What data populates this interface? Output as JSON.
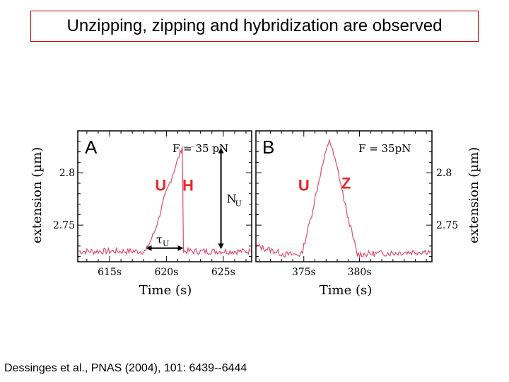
{
  "slide": {
    "title": "Unzipping, zipping and hybridization are observed",
    "citation": "Dessinges et al., PNAS (2004), 101: 6439--6444"
  },
  "colors": {
    "trace": "#e04a6a",
    "letters": "#e8262a",
    "title_border": "#c00000",
    "axis": "#000000"
  },
  "chart_data": [
    {
      "type": "line",
      "panel_label": "A",
      "force_label": "F = 35  pN",
      "xlabel": "Time (s)",
      "ylabel": "extension (µm)",
      "xlim": [
        612.2,
        627.5
      ],
      "ylim": [
        2.715,
        2.84
      ],
      "xticks": [
        615,
        620,
        625
      ],
      "xtick_labels": [
        "615s",
        "620s",
        "625s"
      ],
      "yticks": [
        2.75,
        2.8
      ],
      "ytick_labels": [
        "2.75",
        "2.8"
      ],
      "series": [
        {
          "x": [
            612.3,
            618.2,
            619.0,
            619.8,
            620.6,
            621.4,
            621.5,
            622.4,
            627.4
          ],
          "y": [
            2.725,
            2.725,
            2.745,
            2.775,
            2.8,
            2.825,
            2.725,
            2.725,
            2.725
          ]
        }
      ],
      "annotations": [
        {
          "text": "U",
          "x": 619.5,
          "y": 2.783
        },
        {
          "text": "H",
          "x": 621.9,
          "y": 2.783
        }
      ],
      "arrows": {
        "tau_label": "τ",
        "tau_sub": "U",
        "tau_range": [
          618.2,
          621.5
        ],
        "tau_y": 2.728,
        "n_label": "N",
        "n_sub": "U",
        "n_x": 624.8,
        "n_range": [
          2.727,
          2.824
        ],
        "dashed_from": 621.5,
        "dashed_to": 624.8,
        "dashed_y": 2.825
      }
    },
    {
      "type": "line",
      "panel_label": "B",
      "force_label": "F = 35pN",
      "xlabel": "Time (s)",
      "ylabel": "extension (µm)",
      "xlim": [
        370.7,
        386.5
      ],
      "ylim": [
        2.715,
        2.84
      ],
      "xticks": [
        375,
        380
      ],
      "xtick_labels": [
        "375s",
        "380s"
      ],
      "yticks": [
        2.75,
        2.8
      ],
      "ytick_labels": [
        "2.75",
        "2.8"
      ],
      "series": [
        {
          "x": [
            370.8,
            373.3,
            374.8,
            375.7,
            376.5,
            377.3,
            378.1,
            378.9,
            379.8,
            386.4
          ],
          "y": [
            2.73,
            2.722,
            2.722,
            2.76,
            2.8,
            2.832,
            2.8,
            2.76,
            2.722,
            2.725
          ]
        }
      ],
      "annotations": [
        {
          "text": "U",
          "x": 375.0,
          "y": 2.783
        },
        {
          "text": "Z",
          "x": 378.8,
          "y": 2.785
        }
      ]
    }
  ]
}
